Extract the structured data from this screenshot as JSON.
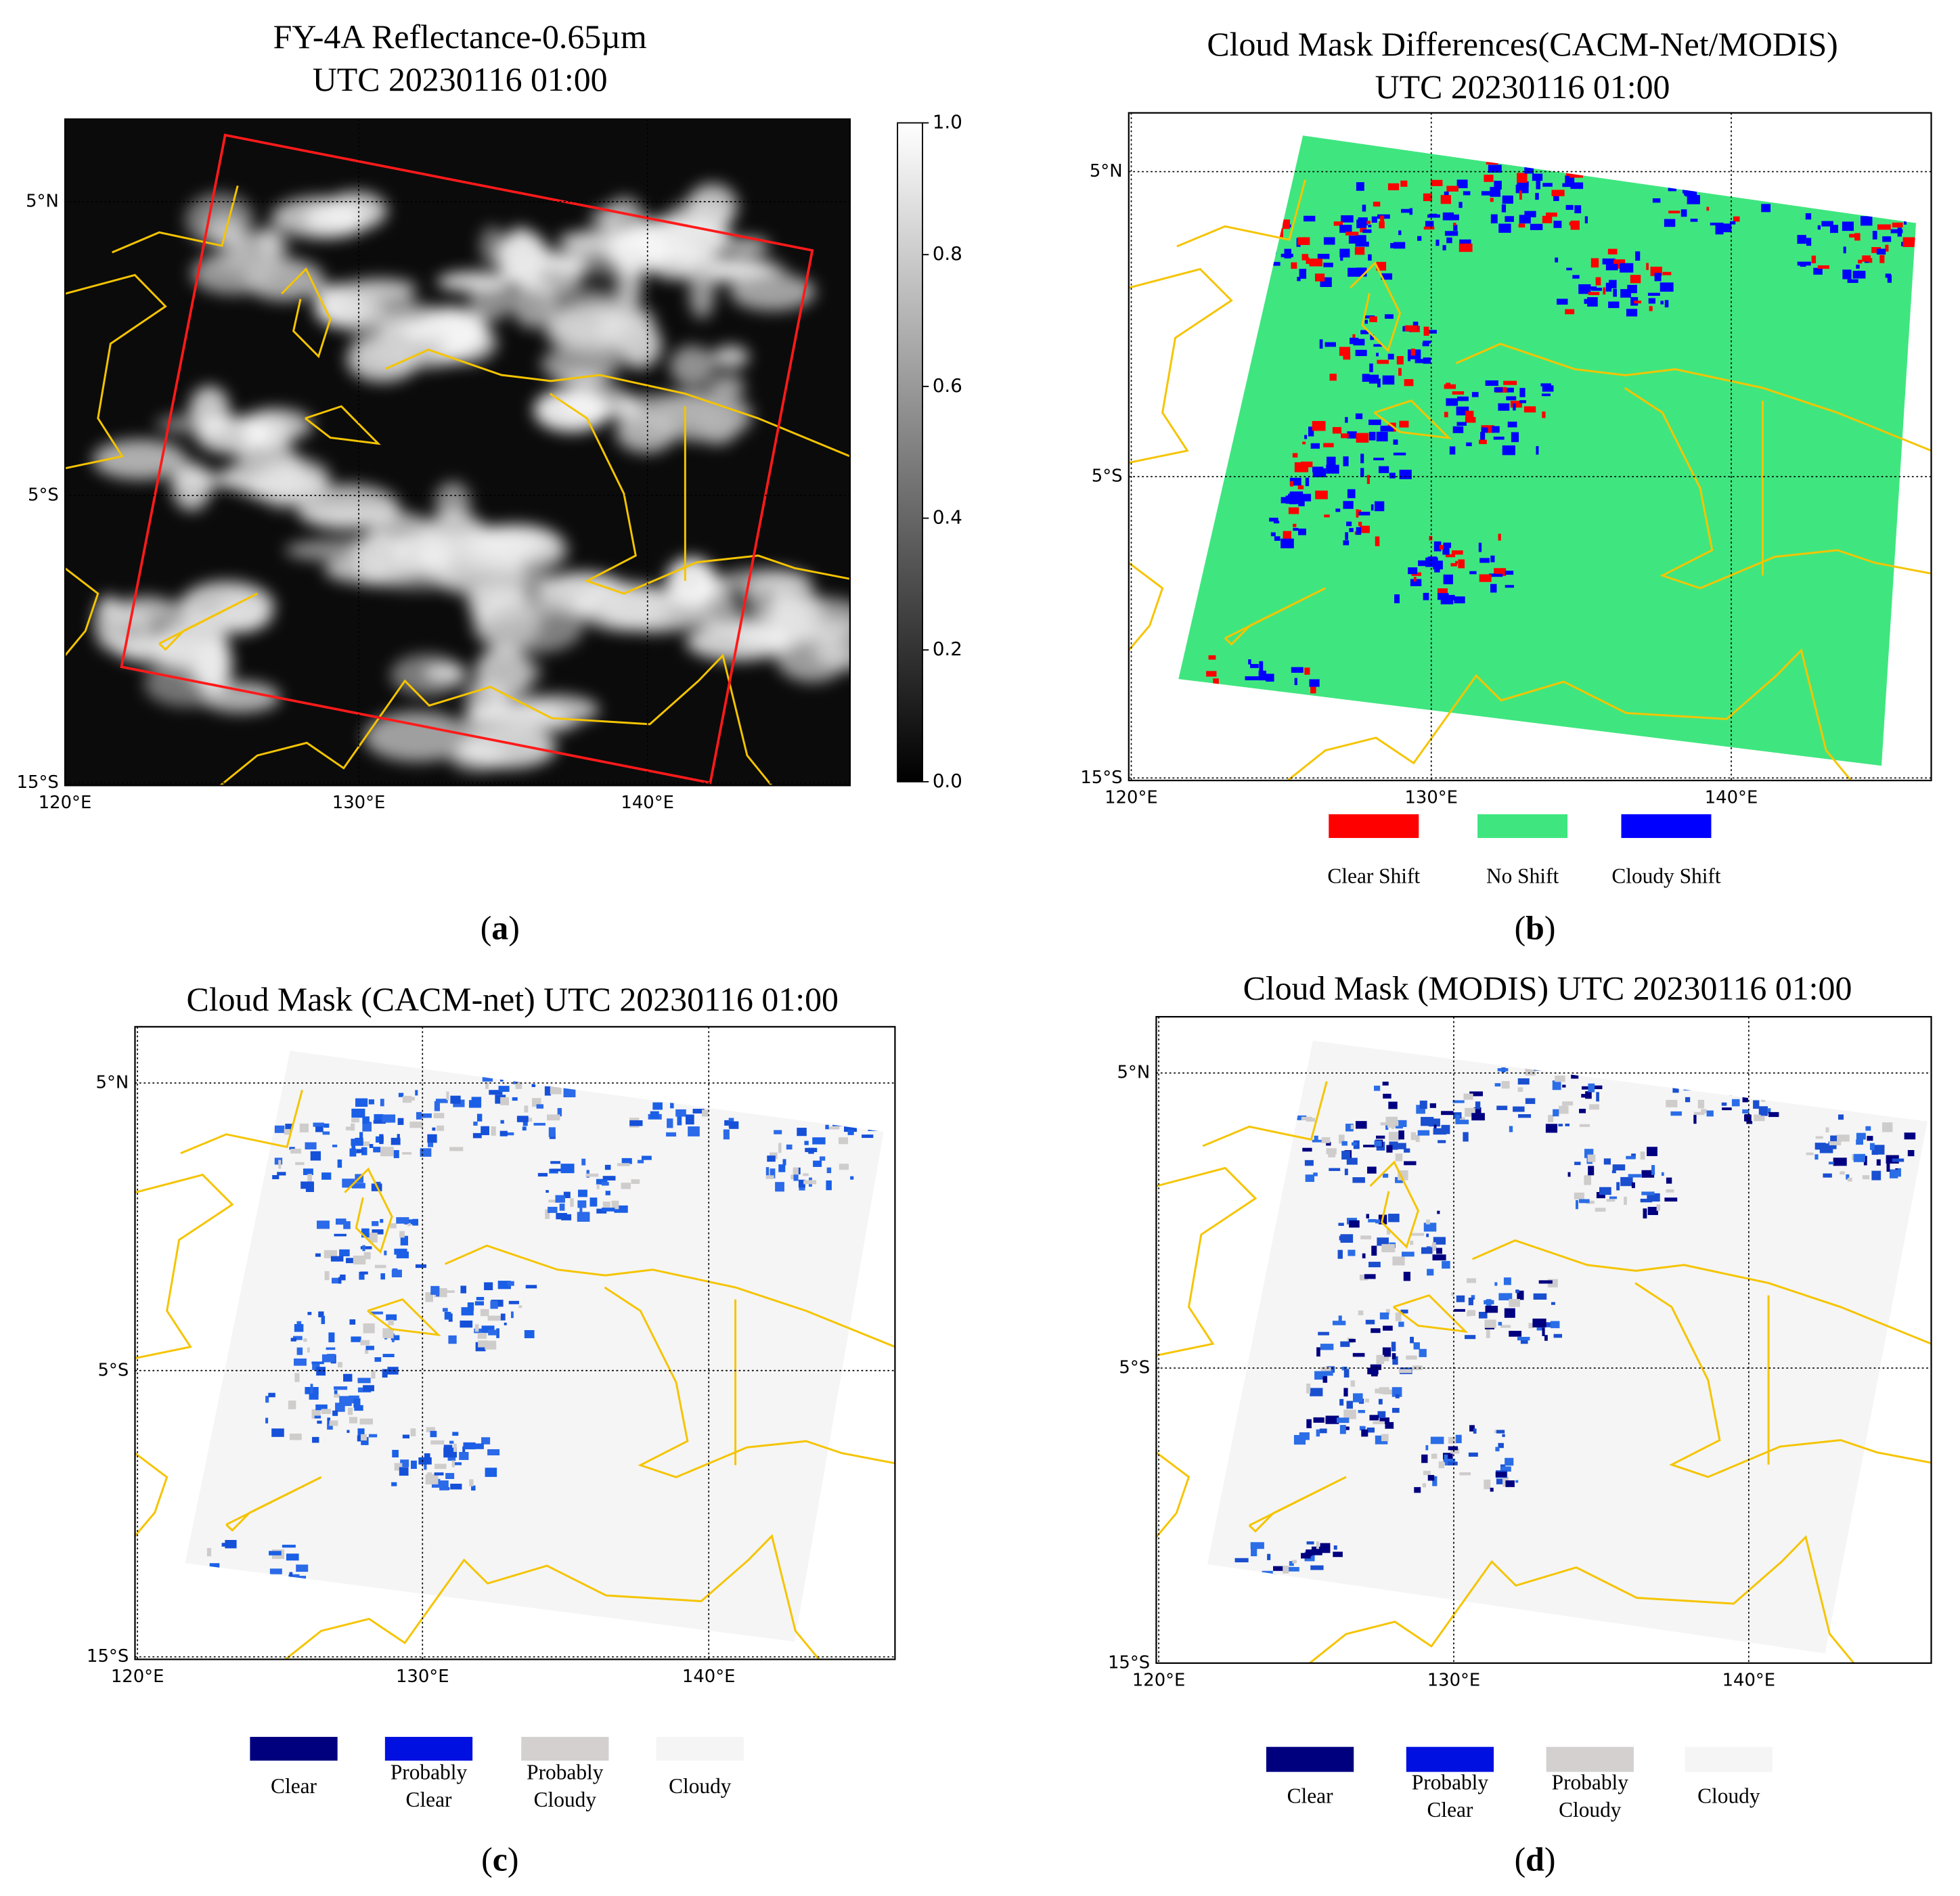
{
  "panels": [
    {
      "caption": "(a)",
      "title": [
        "FY-4A Reflectance-0.65µm",
        "UTC 20230116 01:00"
      ],
      "lat_labels": [
        "5°N",
        "5°S",
        "15°S"
      ],
      "lon_labels": [
        "120°E",
        "130°E",
        "140°E"
      ],
      "colorbar_ticks": [
        "1.0",
        "0.8",
        "0.6",
        "0.4",
        "0.2",
        "0.0"
      ]
    },
    {
      "caption": "(b)",
      "title": [
        "Cloud Mask Differences(CACM-Net/MODIS)",
        "UTC 20230116 01:00"
      ],
      "lat_labels": [
        "5°N",
        "5°S",
        "15°S"
      ],
      "lon_labels": [
        "120°E",
        "130°E",
        "140°E"
      ],
      "legend": [
        {
          "label": [
            "Clear Shift"
          ],
          "color": "#ff0000"
        },
        {
          "label": [
            "No Shift"
          ],
          "color": "#3fe67f"
        },
        {
          "label": [
            "Cloudy Shift"
          ],
          "color": "#0000ff"
        }
      ]
    },
    {
      "caption": "(c)",
      "title": [
        "Cloud Mask (CACM-net) UTC 20230116 01:00"
      ],
      "lat_labels": [
        "5°N",
        "5°S",
        "15°S"
      ],
      "lon_labels": [
        "120°E",
        "130°E",
        "140°E"
      ],
      "legend": [
        {
          "label": [
            "Clear"
          ],
          "color": "#00007f"
        },
        {
          "label": [
            "Probably",
            "Clear"
          ],
          "color": "#0010e0"
        },
        {
          "label": [
            "Probably",
            "Cloudy"
          ],
          "color": "#d4d0d0"
        },
        {
          "label": [
            "Cloudy"
          ],
          "color": "#f5f5f5"
        }
      ]
    },
    {
      "caption": "(d)",
      "title": [
        "Cloud Mask (MODIS) UTC 20230116 01:00"
      ],
      "lat_labels": [
        "5°N",
        "5°S",
        "15°S"
      ],
      "lon_labels": [
        "120°E",
        "130°E",
        "140°E"
      ],
      "legend": [
        {
          "label": [
            "Clear"
          ],
          "color": "#00007f"
        },
        {
          "label": [
            "Probably",
            "Clear"
          ],
          "color": "#0010e0"
        },
        {
          "label": [
            "Probably",
            "Cloudy"
          ],
          "color": "#d4d0d0"
        },
        {
          "label": [
            "Cloudy"
          ],
          "color": "#f5f5f5"
        }
      ]
    }
  ]
}
